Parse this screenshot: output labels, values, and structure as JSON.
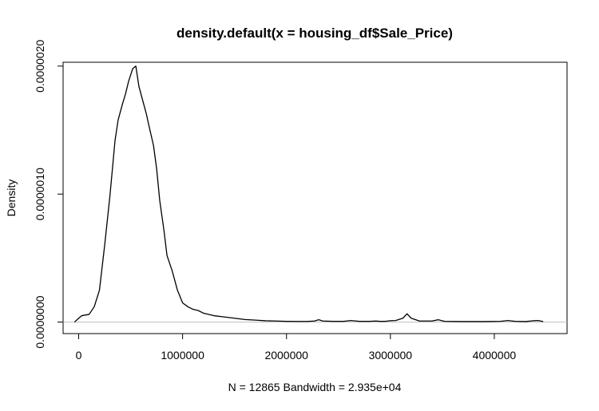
{
  "chart_data": {
    "type": "line",
    "title": "density.default(x = housing_df$Sale_Price)",
    "xlabel": "N = 12865   Bandwidth = 2.935e+04",
    "ylabel": "Density",
    "xlim": [
      -150000,
      4700000
    ],
    "ylim": [
      -9e-08,
      2.03e-06
    ],
    "x_ticks": [
      {
        "value": 0,
        "label": "0"
      },
      {
        "value": 1000000,
        "label": "1000000"
      },
      {
        "value": 2000000,
        "label": "2000000"
      },
      {
        "value": 3000000,
        "label": "3000000"
      },
      {
        "value": 4000000,
        "label": "4000000"
      }
    ],
    "y_ticks": [
      {
        "value": 0,
        "label": "0.0000000"
      },
      {
        "value": 1e-06,
        "label": "0.0000010"
      },
      {
        "value": 2e-06,
        "label": "0.0000020"
      }
    ],
    "baseline_color": "#bebebe",
    "line_color": "#000000",
    "series": [
      {
        "x": [
          -40000,
          0,
          30000,
          100000,
          150000,
          200000,
          250000,
          300000,
          350000,
          380000,
          420000,
          450000,
          480000,
          520000,
          550000,
          580000,
          620000,
          650000,
          680000,
          720000,
          750000,
          780000,
          820000,
          850000,
          900000,
          950000,
          1000000,
          1050000,
          1100000,
          1150000,
          1200000,
          1300000,
          1400000,
          1500000,
          1600000,
          1700000,
          1800000,
          1900000,
          2000000,
          2100000,
          2200000,
          2270000,
          2310000,
          2350000,
          2450000,
          2550000,
          2620000,
          2700000,
          2800000,
          2860000,
          2900000,
          2950000,
          2990000,
          3050000,
          3120000,
          3160000,
          3200000,
          3280000,
          3400000,
          3460000,
          3520000,
          3700000,
          3900000,
          4060000,
          4130000,
          4200000,
          4300000,
          4370000,
          4420000,
          4470000
        ],
        "values": [
          0.0,
          3e-08,
          5e-08,
          6e-08,
          1.2e-07,
          2.5e-07,
          6e-07,
          9.8e-07,
          1.42e-06,
          1.58e-06,
          1.7e-06,
          1.78e-06,
          1.88e-06,
          1.98e-06,
          2e-06,
          1.84e-06,
          1.72e-06,
          1.63e-06,
          1.52e-06,
          1.38e-06,
          1.2e-06,
          9.5e-07,
          7.2e-07,
          5.2e-07,
          4e-07,
          2.5e-07,
          1.5e-07,
          1.2e-07,
          1e-07,
          9e-08,
          7e-08,
          5e-08,
          4e-08,
          3e-08,
          2e-08,
          1.5e-08,
          1e-08,
          8e-09,
          6e-09,
          5e-09,
          5e-09,
          8e-09,
          1.8e-08,
          8e-09,
          6e-09,
          6e-09,
          1.2e-08,
          6e-09,
          6e-09,
          8e-09,
          6e-09,
          6e-09,
          1e-08,
          1.2e-08,
          3e-08,
          6.5e-08,
          3e-08,
          8e-09,
          8e-09,
          1.8e-08,
          6e-09,
          4e-09,
          4e-09,
          6e-09,
          1.2e-08,
          6e-09,
          4e-09,
          1e-08,
          1.2e-08,
          4e-09
        ]
      }
    ]
  }
}
